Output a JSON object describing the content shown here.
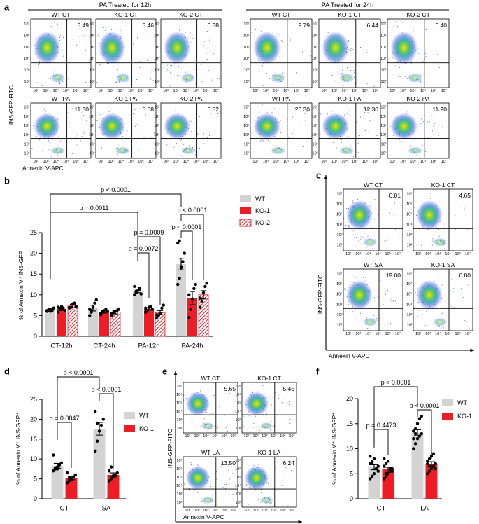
{
  "panel_labels": [
    "a",
    "b",
    "c",
    "d",
    "e",
    "f"
  ],
  "flow_ticks": {
    "x": [
      "10²",
      "10³",
      "10⁴",
      "10⁵",
      "10⁶",
      "10⁷"
    ],
    "y": [
      "10⁷",
      "10⁶",
      "10⁵",
      "10⁴",
      "10³",
      "10²"
    ]
  },
  "flow_a": {
    "y_label": "INS-GFP-FITC",
    "x_label": "Annexin V-APC",
    "groups": [
      {
        "title": "PA Treated for 12h",
        "rows": [
          [
            {
              "name": "WT CT",
              "percent": "5.49"
            },
            {
              "name": "KO-1 CT",
              "percent": "5.46"
            },
            {
              "name": "KO-2 CT",
              "percent": "6.38"
            }
          ],
          [
            {
              "name": "WT PA",
              "percent": "11.30"
            },
            {
              "name": "KO-1 PA",
              "percent": "6.08"
            },
            {
              "name": "KO-2 PA",
              "percent": "6.52"
            }
          ]
        ]
      },
      {
        "title": "PA Treated for 24h",
        "rows": [
          [
            {
              "name": "WT CT",
              "percent": "9.79"
            },
            {
              "name": "KO-1 CT",
              "percent": "6.44"
            },
            {
              "name": "KO-2 CT",
              "percent": "6.40"
            }
          ],
          [
            {
              "name": "WT PA",
              "percent": "20.30"
            },
            {
              "name": "KO-1 PA",
              "percent": "12.30"
            },
            {
              "name": "KO-2 PA",
              "percent": "11.90"
            }
          ]
        ]
      }
    ]
  },
  "flow_c": {
    "y_label": "INS-GFP-FITC",
    "x_label": "Annexin V-APC",
    "rows": [
      [
        {
          "name": "WT CT",
          "percent": "6.01"
        },
        {
          "name": "KO-1 CT",
          "percent": "4.65"
        }
      ],
      [
        {
          "name": "WT SA",
          "percent": "19.00"
        },
        {
          "name": "KO-1 SA",
          "percent": "6.80"
        }
      ]
    ]
  },
  "flow_e": {
    "y_label": "INS-GFP-FITC",
    "x_label": "Annexin V-APC",
    "rows": [
      [
        {
          "name": "WT CT",
          "percent": "5.65"
        },
        {
          "name": "KO-1 CT",
          "percent": "5.45"
        }
      ],
      [
        {
          "name": "WT LA",
          "percent": "13.50"
        },
        {
          "name": "KO-1 LA",
          "percent": "6.24"
        }
      ]
    ]
  },
  "chart_data": [
    {
      "type": "bar",
      "y_label": "% of  Annexin V⁺ INS-GFP⁺",
      "categories": [
        "CT-12h",
        "CT-24h",
        "PA-12h",
        "PA-24h"
      ],
      "series": [
        {
          "name": "WT",
          "color": "#d3d3d3",
          "values": [
            6.3,
            6.8,
            10.8,
            17.4
          ],
          "errors": [
            0.2,
            0.7,
            0.3,
            1.4
          ],
          "points": [
            [
              6.0,
              6.3,
              6.5,
              6.1,
              6.8,
              6.2,
              6.4,
              6.0
            ],
            [
              5.0,
              6.2,
              7.0,
              8.0,
              8.8,
              6.5,
              5.8,
              7.2
            ],
            [
              10.0,
              10.5,
              11.0,
              11.5,
              10.2,
              12.0,
              10.8
            ],
            [
              12.5,
              14.0,
              16.5,
              18.0,
              20.0,
              22.5,
              23.0,
              16.8
            ]
          ]
        },
        {
          "name": "KO-1",
          "color": "#ee1c25",
          "values": [
            6.6,
            5.9,
            6.6,
            9.2
          ],
          "errors": [
            0.4,
            0.3,
            0.3,
            1.6
          ],
          "points": [
            [
              5.8,
              6.5,
              7.2,
              6.8,
              6.2,
              7.0
            ],
            [
              5.2,
              5.8,
              6.2,
              6.5,
              6.0,
              5.5
            ],
            [
              5.8,
              6.2,
              7.0,
              7.2,
              6.5,
              6.8
            ],
            [
              4.5,
              6.5,
              9.0,
              11.5,
              12.5,
              10.0
            ]
          ]
        },
        {
          "name": "KO-2",
          "color": "#ee1c25",
          "pattern": "hatch",
          "values": [
            7.3,
            5.8,
            5.7,
            10.0
          ],
          "errors": [
            0.4,
            0.4,
            0.5,
            1.0
          ],
          "points": [
            [
              6.8,
              7.0,
              7.8,
              8.0,
              7.2,
              6.9
            ],
            [
              5.0,
              5.8,
              6.0,
              6.2,
              6.5,
              5.5
            ],
            [
              4.5,
              5.0,
              5.5,
              6.8,
              7.5,
              5.2
            ],
            [
              7.0,
              8.5,
              10.5,
              12.0,
              12.8,
              9.2
            ]
          ]
        }
      ],
      "ylim": [
        0,
        25
      ],
      "yticks": [
        0,
        5,
        10,
        15,
        20,
        25
      ],
      "annotations": [
        "p < 0.0001",
        "p = 0.0011",
        "p < 0.0001",
        "p = 0.0009",
        "p < 0.0001",
        "p = 0.0072"
      ]
    },
    {
      "type": "bar",
      "y_label": "% of  Annexin V⁺ INS-GFP⁺",
      "categories": [
        "CT",
        "SA"
      ],
      "series": [
        {
          "name": "WT",
          "color": "#d3d3d3",
          "values": [
            8.3,
            17.6
          ],
          "errors": [
            0.6,
            1.6
          ],
          "points": [
            [
              7.0,
              7.5,
              8.0,
              8.5,
              9.0,
              11.0,
              7.8,
              7.5
            ],
            [
              12.0,
              14.5,
              17.0,
              18.5,
              20.0,
              22.0,
              19.0
            ]
          ]
        },
        {
          "name": "KO-1",
          "color": "#ee1c25",
          "values": [
            5.2,
            6.0
          ],
          "errors": [
            0.4,
            0.5
          ],
          "points": [
            [
              4.0,
              4.5,
              5.0,
              5.5,
              6.0,
              6.5,
              5.2,
              4.8
            ],
            [
              4.5,
              5.0,
              5.5,
              6.0,
              6.5,
              7.0,
              8.0,
              5.8
            ]
          ]
        }
      ],
      "ylim": [
        0,
        25
      ],
      "yticks": [
        0,
        5,
        10,
        15,
        20,
        25
      ],
      "annotations": [
        "p < 0.0001",
        "p = 0.0847",
        "p < 0.0001"
      ]
    },
    {
      "type": "bar",
      "y_label": "% of  Annexin V⁺ INS-GFP⁺",
      "categories": [
        "CT",
        "LA"
      ],
      "series": [
        {
          "name": "WT",
          "color": "#d3d3d3",
          "values": [
            6.3,
            13.2
          ],
          "errors": [
            0.5,
            0.6
          ],
          "points": [
            [
              4.0,
              4.5,
              5.0,
              6.0,
              6.5,
              7.0,
              7.5,
              8.0,
              6.0,
              5.5,
              8.5,
              7.0
            ],
            [
              10.0,
              11.0,
              12.0,
              12.5,
              13.0,
              13.5,
              14.0,
              15.0,
              16.0,
              16.5,
              12.0,
              13.0
            ]
          ]
        },
        {
          "name": "KO-1",
          "color": "#ee1c25",
          "values": [
            5.9,
            6.9
          ],
          "errors": [
            0.4,
            0.5
          ],
          "points": [
            [
              4.0,
              4.5,
              5.0,
              5.5,
              6.0,
              6.5,
              7.0,
              7.5,
              6.0,
              5.5,
              8.0,
              5.0
            ],
            [
              5.0,
              5.5,
              6.0,
              6.5,
              7.0,
              7.5,
              8.0,
              8.5,
              9.0,
              6.0,
              7.0,
              6.5
            ]
          ]
        }
      ],
      "ylim": [
        0,
        20
      ],
      "yticks": [
        0,
        5,
        10,
        15,
        20
      ],
      "annotations": [
        "p < 0.0001",
        "p = 0.4473",
        "p < 0.0001"
      ]
    }
  ]
}
